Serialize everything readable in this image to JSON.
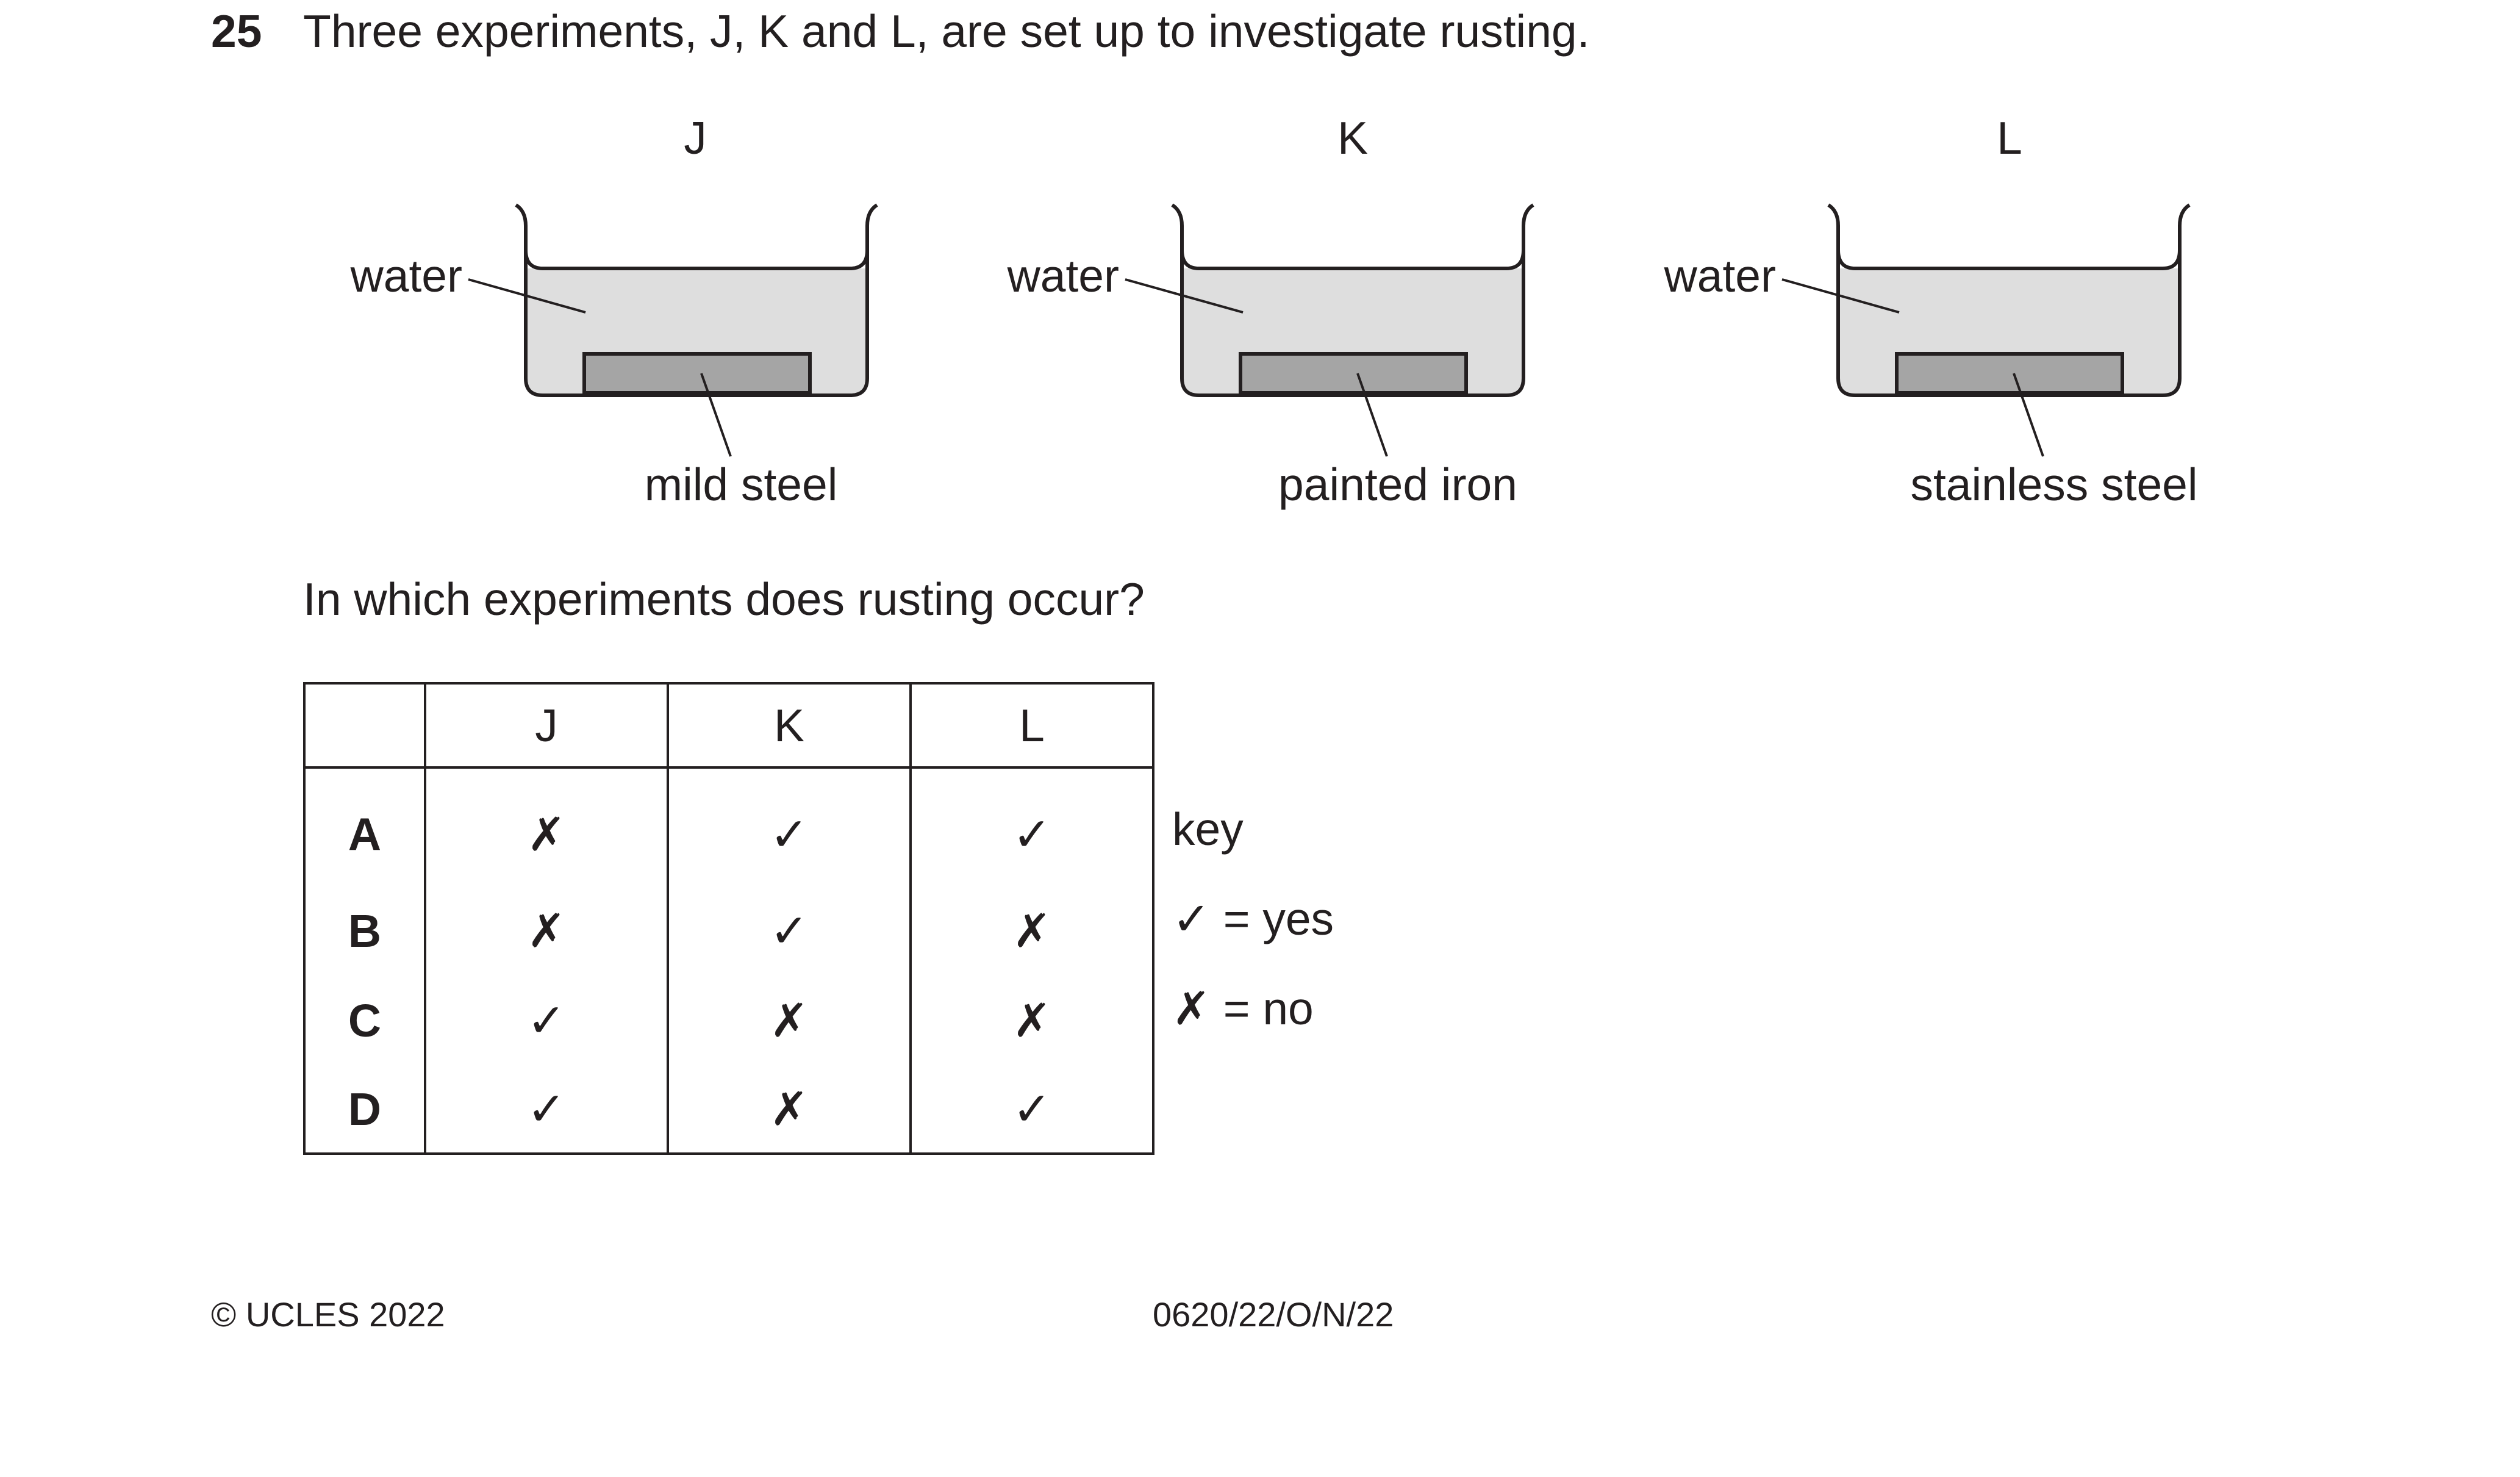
{
  "question": {
    "number": "25",
    "stem": "Three experiments, J, K and L, are set up to investigate rusting.",
    "sub_question": "In which experiments does rusting occur?"
  },
  "diagram": {
    "experiments": [
      {
        "label": "J",
        "liquid_label": "water",
        "metal_label": "mild steel"
      },
      {
        "label": "K",
        "liquid_label": "water",
        "metal_label": "painted iron"
      },
      {
        "label": "L",
        "liquid_label": "water",
        "metal_label": "stainless steel"
      }
    ],
    "colors": {
      "water": "#dedede",
      "metal": "#a5a5a5",
      "outline": "#231f20"
    }
  },
  "table": {
    "headers": [
      "",
      "J",
      "K",
      "L"
    ],
    "rows": [
      {
        "option": "A",
        "J": "✗",
        "K": "✓",
        "L": "✓"
      },
      {
        "option": "B",
        "J": "✗",
        "K": "✓",
        "L": "✗"
      },
      {
        "option": "C",
        "J": "✓",
        "K": "✗",
        "L": "✗"
      },
      {
        "option": "D",
        "J": "✓",
        "K": "✗",
        "L": "✓"
      }
    ]
  },
  "key": {
    "title": "key",
    "yes_symbol": "✓",
    "yes_text": "= yes",
    "no_symbol": "✗",
    "no_text": "= no"
  },
  "footer": {
    "copyright": "© UCLES 2022",
    "code": "0620/22/O/N/22"
  }
}
